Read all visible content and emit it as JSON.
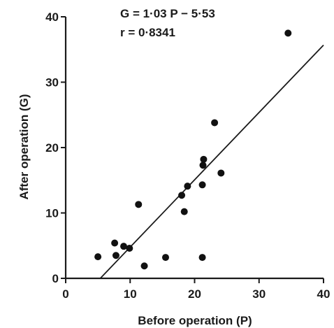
{
  "chart_data": {
    "type": "scatter",
    "title": "",
    "xlabel": "Before operation (P)",
    "ylabel": "After operation (G)",
    "xlim": [
      0,
      40
    ],
    "ylim": [
      0,
      40
    ],
    "xticks": [
      0,
      10,
      20,
      30,
      40
    ],
    "yticks": [
      0,
      10,
      20,
      30,
      40
    ],
    "xtick_labels": [
      "0",
      "10",
      "20",
      "30",
      "40"
    ],
    "ytick_labels": [
      "0",
      "10",
      "20",
      "30",
      "40"
    ],
    "grid": false,
    "annotations": [
      "G = 1·03 P − 5·53",
      "r = 0·8341"
    ],
    "points": [
      {
        "x": 5.0,
        "y": 3.3
      },
      {
        "x": 7.6,
        "y": 5.4
      },
      {
        "x": 7.8,
        "y": 3.5
      },
      {
        "x": 9.0,
        "y": 4.9
      },
      {
        "x": 9.9,
        "y": 4.6
      },
      {
        "x": 11.3,
        "y": 11.3
      },
      {
        "x": 12.2,
        "y": 1.9
      },
      {
        "x": 15.5,
        "y": 3.2
      },
      {
        "x": 18.0,
        "y": 12.7
      },
      {
        "x": 18.4,
        "y": 10.2
      },
      {
        "x": 18.9,
        "y": 14.1
      },
      {
        "x": 21.2,
        "y": 3.2
      },
      {
        "x": 21.2,
        "y": 14.3
      },
      {
        "x": 21.3,
        "y": 17.3
      },
      {
        "x": 21.4,
        "y": 18.2
      },
      {
        "x": 23.1,
        "y": 23.8
      },
      {
        "x": 24.1,
        "y": 16.1
      },
      {
        "x": 34.5,
        "y": 37.5
      }
    ],
    "regression": {
      "slope": 1.03,
      "intercept": -5.53,
      "x_start": 5.37,
      "x_end": 40
    }
  }
}
